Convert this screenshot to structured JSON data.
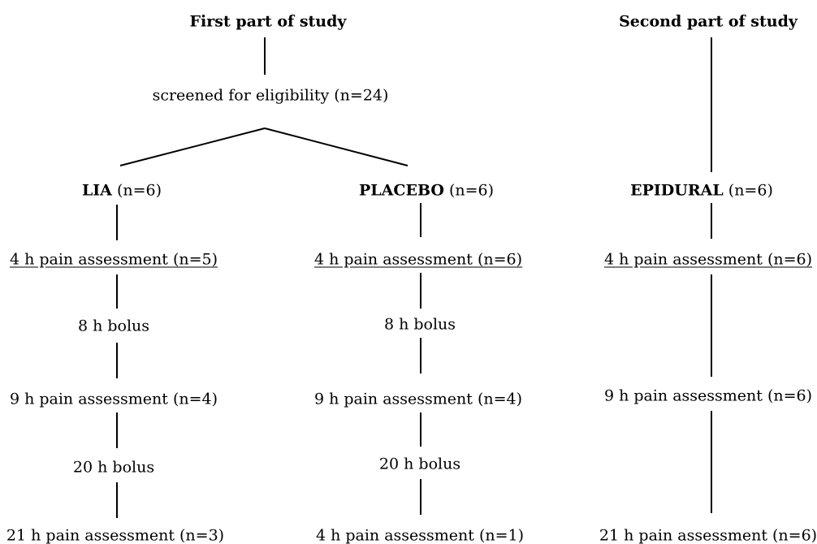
{
  "headers": {
    "first": "First part of study",
    "second": "Second part of study"
  },
  "screening": "screened for eligibility (n=24)",
  "lia": {
    "group": "LIA",
    "n": "(n=6)",
    "steps": [
      "4 h pain assessment (n=5)",
      "8 h bolus",
      "9 h pain assessment (n=4)",
      "20 h bolus",
      "21 h pain assessment (n=3)"
    ]
  },
  "placebo": {
    "group": "PLACEBO",
    "n": "(n=6)",
    "steps": [
      "4 h pain assessment (n=6)",
      "8 h bolus",
      "9 h pain assessment (n=4)",
      "20 h bolus",
      "4 h pain assessment (n=1)"
    ]
  },
  "epidural": {
    "group": "EPIDURAL",
    "n": "(n=6)",
    "steps": [
      "4 h pain assessment (n=6)",
      "9 h pain assessment (n=6)",
      "21 h pain assessment (n=6)"
    ]
  }
}
